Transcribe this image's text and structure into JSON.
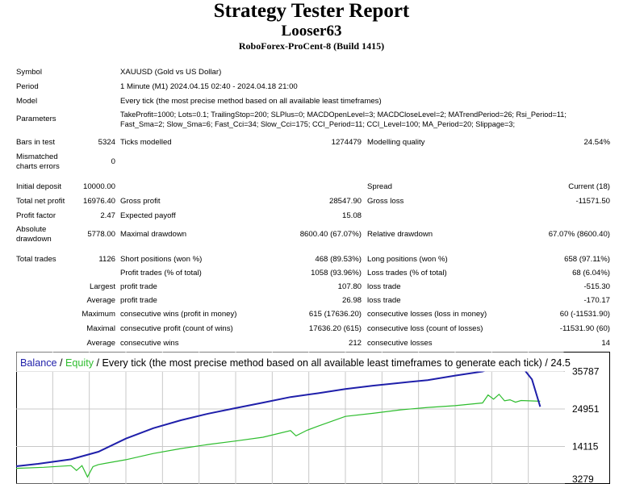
{
  "header": {
    "title": "Strategy Tester Report",
    "expert": "Looser63",
    "server": "RoboForex-ProCent-8 (Build 1415)"
  },
  "info": {
    "symbol_label": "Symbol",
    "symbol_value": "XAUUSD (Gold vs US Dollar)",
    "period_label": "Period",
    "period_value": "1 Minute (M1) 2024.04.15 02:40 - 2024.04.18 21:00",
    "model_label": "Model",
    "model_value": "Every tick (the most precise method based on all available least timeframes)",
    "parameters_label": "Parameters",
    "parameters_line1": "TakeProfit=1000; Lots=0.1; TrailingStop=200; SLPlus=0; MACDOpenLevel=3; MACDCloseLevel=2; MATrendPeriod=26; Rsi_Period=11;",
    "parameters_line2": "Fast_Sma=2; Slow_Sma=6; Fast_Cci=34; Slow_Cci=175; CCI_Period=11; CCI_Level=100; MA_Period=20; Slippage=3;",
    "bars_label": "Bars in test",
    "bars_value": "5324",
    "ticks_label": "Ticks modelled",
    "ticks_value": "1274479",
    "quality_label": "Modelling quality",
    "quality_value": "24.54%",
    "mismatch_label_1": "Mismatched",
    "mismatch_label_2": "charts errors",
    "mismatch_value": "0"
  },
  "results": {
    "initial_deposit_label": "Initial deposit",
    "initial_deposit_value": "10000.00",
    "spread_label": "Spread",
    "spread_value": "Current (18)",
    "net_profit_label": "Total net profit",
    "net_profit_value": "16976.40",
    "gross_profit_label": "Gross profit",
    "gross_profit_value": "28547.90",
    "gross_loss_label": "Gross loss",
    "gross_loss_value": "-11571.50",
    "profit_factor_label": "Profit factor",
    "profit_factor_value": "2.47",
    "expected_payoff_label": "Expected payoff",
    "expected_payoff_value": "15.08",
    "abs_dd_label_1": "Absolute",
    "abs_dd_label_2": "drawdown",
    "abs_dd_value": "5778.00",
    "max_dd_label": "Maximal drawdown",
    "max_dd_value": "8600.40 (67.07%)",
    "rel_dd_label": "Relative drawdown",
    "rel_dd_value": "67.07% (8600.40)",
    "total_trades_label": "Total trades",
    "total_trades_value": "1126",
    "short_label": "Short positions (won %)",
    "short_value": "468 (89.53%)",
    "long_label": "Long positions (won %)",
    "long_value": "658 (97.11%)",
    "profit_trades_label": "Profit trades (% of total)",
    "profit_trades_value": "1058 (93.96%)",
    "loss_trades_label": "Loss trades (% of total)",
    "loss_trades_value": "68 (6.04%)",
    "largest_label": "Largest",
    "largest_profit_label": "profit trade",
    "largest_profit_value": "107.80",
    "largest_loss_label": "loss trade",
    "largest_loss_value": "-515.30",
    "average_label": "Average",
    "average_profit_label": "profit trade",
    "average_profit_value": "26.98",
    "average_loss_label": "loss trade",
    "average_loss_value": "-170.17",
    "maximum_label": "Maximum",
    "max_cons_wins_label": "consecutive wins (profit in money)",
    "max_cons_wins_value": "615 (17636.20)",
    "max_cons_losses_label": "consecutive losses (loss in money)",
    "max_cons_losses_value": "60 (-11531.90)",
    "maximal_label": "Maximal",
    "maximal_cons_profit_label": "consecutive profit (count of wins)",
    "maximal_cons_profit_value": "17636.20 (615)",
    "maximal_cons_loss_label": "consecutive loss (count of losses)",
    "maximal_cons_loss_value": "-11531.90 (60)",
    "avg_cons_label": "Average",
    "avg_cons_wins_label": "consecutive wins",
    "avg_cons_wins_value": "212",
    "avg_cons_losses_label": "consecutive losses",
    "avg_cons_losses_value": "14"
  },
  "chart_data": {
    "type": "line",
    "legend_balance": "Balance",
    "legend_sep1": " / ",
    "legend_equity": "Equity",
    "legend_rest": " / Every tick (the most precise method based on all available least timeframes to generate each tick) / 24.5",
    "yticks": [
      35787,
      24951,
      14115,
      3279
    ],
    "ylim": [
      3279,
      41500
    ],
    "colors": {
      "balance": "#1f1faa",
      "equity": "#2ebd2e",
      "grid": "#c8c8c8",
      "axis": "#000000"
    },
    "series": [
      {
        "name": "Balance",
        "x": [
          0,
          4,
          10,
          15,
          20,
          25,
          30,
          35,
          40,
          45,
          50,
          55,
          60,
          65,
          70,
          75,
          80,
          85,
          88,
          89,
          92,
          94,
          95.5
        ],
        "values": [
          8400,
          9100,
          10400,
          12600,
          16400,
          19400,
          21700,
          23600,
          25200,
          26800,
          28400,
          29500,
          30700,
          31700,
          32500,
          33300,
          34600,
          35800,
          37400,
          38000,
          37500,
          33500,
          25600
        ]
      },
      {
        "name": "Equity",
        "x": [
          0,
          5,
          10,
          11,
          12,
          13,
          14,
          15,
          20,
          25,
          30,
          35,
          40,
          45,
          50,
          51,
          53,
          55,
          60,
          65,
          70,
          75,
          80,
          85,
          86,
          87,
          88,
          89,
          90,
          91,
          92,
          95.5
        ],
        "values": [
          7800,
          8100,
          8600,
          7200,
          8600,
          5300,
          8300,
          8900,
          10300,
          12100,
          13500,
          14700,
          15700,
          16800,
          18700,
          17200,
          18800,
          20000,
          22800,
          23700,
          24700,
          25400,
          25900,
          26700,
          29000,
          27800,
          29200,
          27300,
          27600,
          26900,
          27400,
          27200
        ]
      }
    ]
  }
}
